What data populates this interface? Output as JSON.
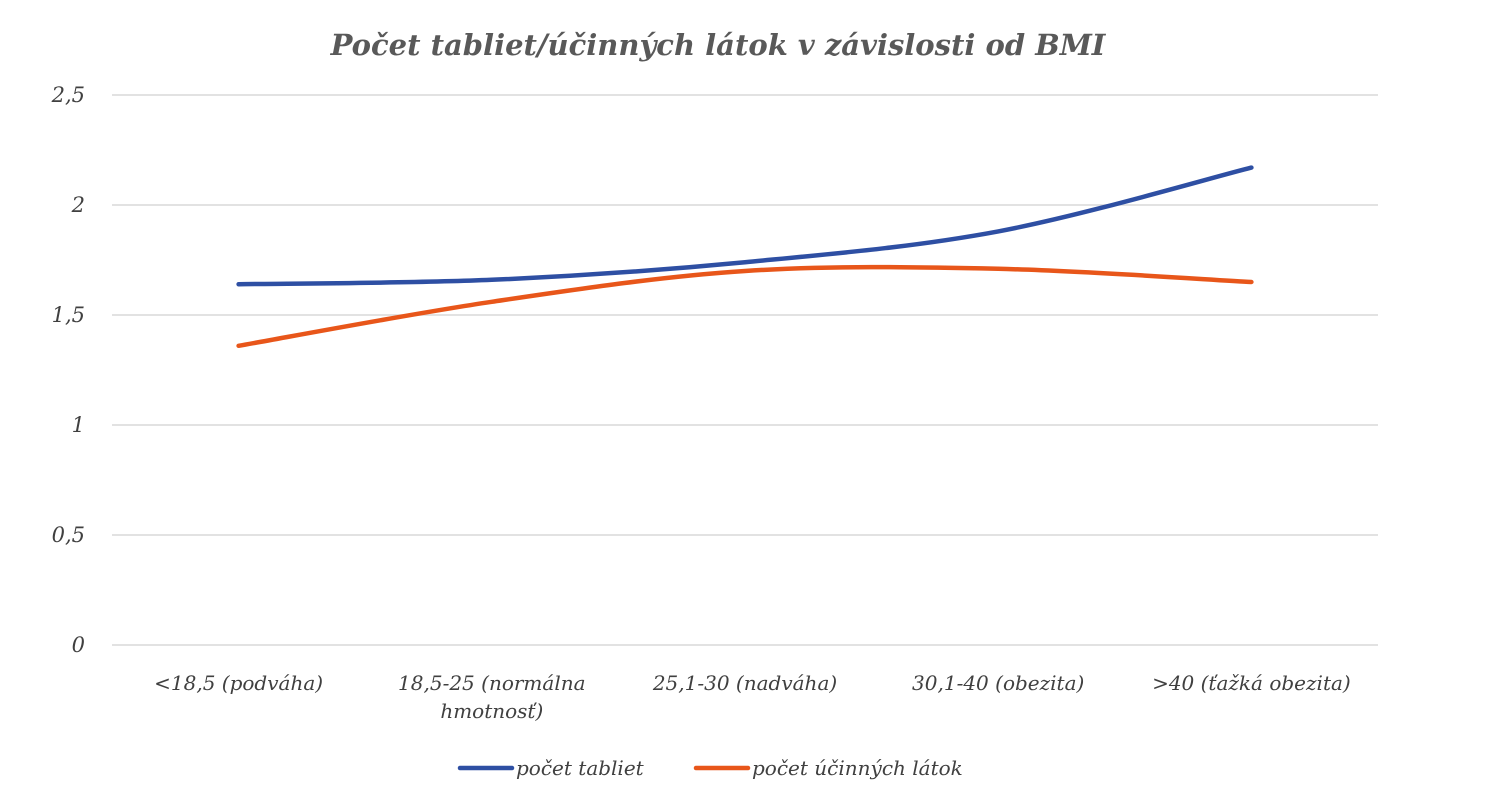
{
  "chart_data": {
    "type": "line",
    "title": "Počet tabliet/účinných látok v závislosti od BMI",
    "xlabel": "",
    "ylabel": "",
    "categories": [
      [
        "<18,5 (podváha)"
      ],
      [
        "18,5-25 (normálna",
        "hmotnosť)"
      ],
      [
        "25,1-30 (nadváha)"
      ],
      [
        "30,1-40 (obezita)"
      ],
      [
        ">40 (ťažká obezita)"
      ]
    ],
    "ylim": [
      0,
      2.5
    ],
    "yticks": [
      "0",
      "0,5",
      "1",
      "1,5",
      "2",
      "2,5"
    ],
    "grid": true,
    "legend_position": "bottom",
    "series": [
      {
        "name": "počet tabliet",
        "values": [
          1.64,
          1.66,
          1.74,
          1.88,
          2.17
        ],
        "color": "#2E4FA3"
      },
      {
        "name": "počet účinných látok",
        "values": [
          1.36,
          1.56,
          1.7,
          1.71,
          1.65
        ],
        "color": "#E8561A"
      }
    ]
  }
}
